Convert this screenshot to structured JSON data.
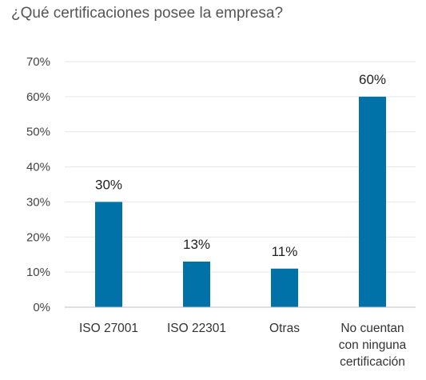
{
  "chart_data": {
    "type": "bar",
    "title": "¿Qué certificaciones posee la empresa?",
    "categories": [
      [
        "ISO 27001"
      ],
      [
        "ISO 22301"
      ],
      [
        "Otras"
      ],
      [
        "No cuentan",
        "con ninguna",
        "certificación"
      ]
    ],
    "values": [
      30,
      13,
      11,
      60
    ],
    "data_labels": [
      "30%",
      "13%",
      "11%",
      "60%"
    ],
    "ylim": [
      0,
      70
    ],
    "yticks": [
      0,
      10,
      20,
      30,
      40,
      50,
      60,
      70
    ],
    "ytick_labels": [
      "0%",
      "10%",
      "20%",
      "30%",
      "40%",
      "50%",
      "60%",
      "70%"
    ],
    "xlabel": "",
    "ylabel": "",
    "grid": true,
    "legend": "none",
    "bar_color": "#0072A8",
    "grid_color": "#E6E6E6"
  }
}
